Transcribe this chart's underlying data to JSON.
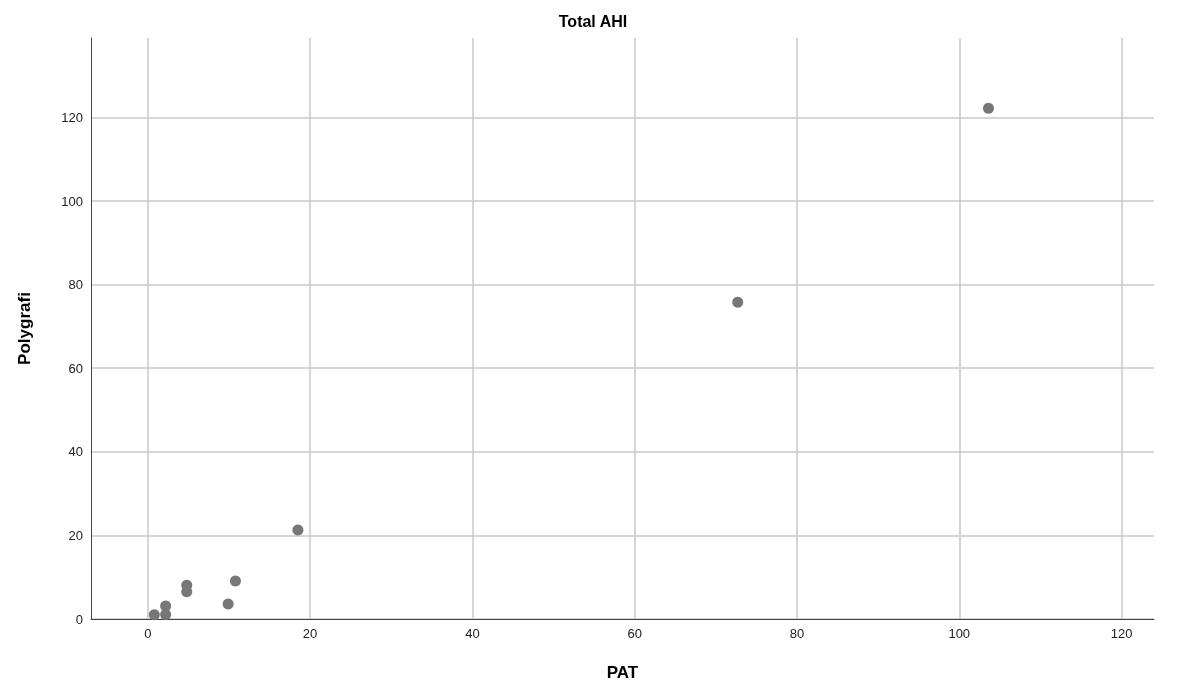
{
  "chart_data": {
    "type": "scatter",
    "title": "Total AHI",
    "xlabel": "PAT",
    "ylabel": "Polygrafi",
    "x": [
      0.8,
      2.2,
      2.2,
      4.8,
      4.8,
      9.9,
      10.8,
      18.5,
      72.7,
      103.6
    ],
    "values": [
      1.0,
      3.1,
      1.1,
      8.1,
      6.5,
      3.6,
      9.1,
      21.3,
      75.8,
      122.2
    ],
    "color": "#777777",
    "marker": "circle",
    "grid": true,
    "xlim": [
      -7,
      124
    ],
    "xticks": [
      0,
      20,
      40,
      60,
      80,
      100,
      120
    ],
    "ylim": [
      0,
      139
    ],
    "yticks": [
      0,
      20,
      40,
      60,
      80,
      100,
      120
    ]
  }
}
